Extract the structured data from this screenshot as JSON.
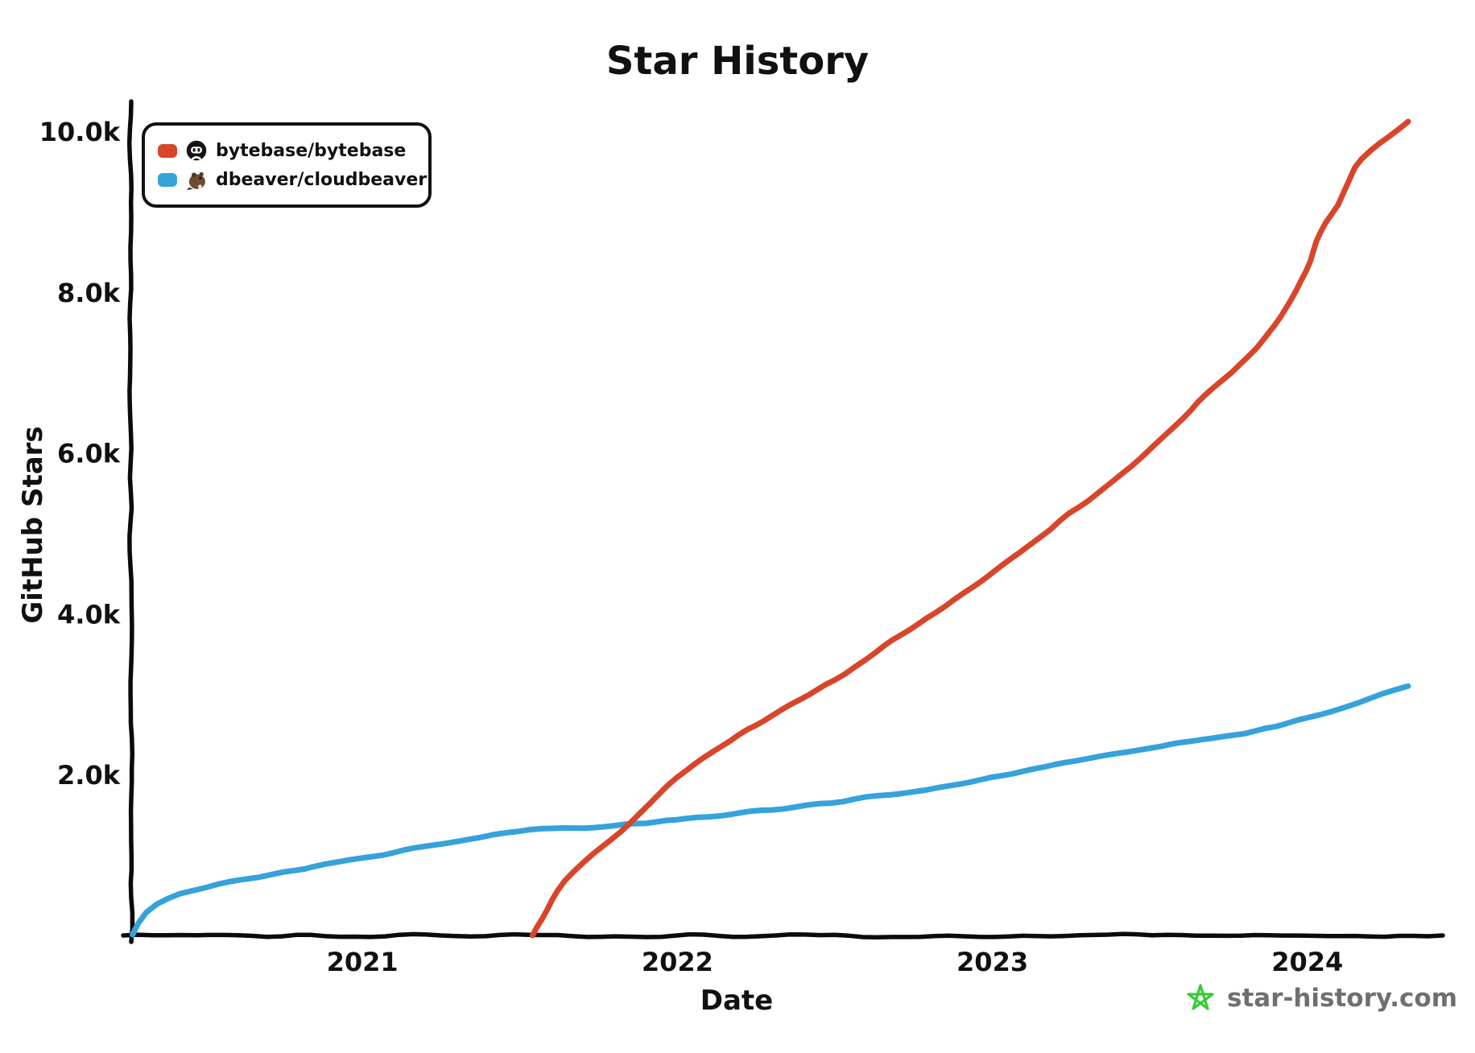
{
  "title": "Star History",
  "watermark": {
    "text": "star-history.com",
    "star_color": "#35cc35",
    "text_color": "#6f6f6f"
  },
  "legend": {
    "items": [
      {
        "label": "bytebase/bytebase",
        "color": "#d9452b",
        "avatar": "bytebase-logo"
      },
      {
        "label": "dbeaver/cloudbeaver",
        "color": "#36a2da",
        "avatar": "beaver-logo"
      }
    ]
  },
  "chart_data": {
    "type": "line",
    "title": "Star History",
    "xlabel": "Date",
    "ylabel": "GitHub Stars",
    "xlim": [
      2020.266,
      2024.43
    ],
    "ylim": [
      0,
      10350
    ],
    "grid": false,
    "legend_position": "top-left",
    "x_ticks": [
      {
        "value": 2021,
        "label": "2021"
      },
      {
        "value": 2022,
        "label": "2022"
      },
      {
        "value": 2023,
        "label": "2023"
      },
      {
        "value": 2024,
        "label": "2024"
      }
    ],
    "y_ticks": [
      {
        "value": 2000,
        "label": "2.0k"
      },
      {
        "value": 4000,
        "label": "4.0k"
      },
      {
        "value": 6000,
        "label": "6.0k"
      },
      {
        "value": 8000,
        "label": "8.0k"
      },
      {
        "value": 10000,
        "label": "10.0k"
      }
    ],
    "series": [
      {
        "name": "bytebase/bytebase",
        "color": "#d9452b",
        "points": [
          [
            2021.54,
            0
          ],
          [
            2021.57,
            220
          ],
          [
            2021.6,
            440
          ],
          [
            2021.64,
            680
          ],
          [
            2021.7,
            900
          ],
          [
            2021.76,
            1090
          ],
          [
            2021.82,
            1280
          ],
          [
            2021.88,
            1530
          ],
          [
            2021.94,
            1760
          ],
          [
            2022.0,
            1980
          ],
          [
            2022.08,
            2200
          ],
          [
            2022.17,
            2430
          ],
          [
            2022.25,
            2620
          ],
          [
            2022.33,
            2800
          ],
          [
            2022.42,
            3000
          ],
          [
            2022.5,
            3180
          ],
          [
            2022.56,
            3330
          ],
          [
            2022.63,
            3520
          ],
          [
            2022.71,
            3740
          ],
          [
            2022.79,
            3950
          ],
          [
            2022.88,
            4180
          ],
          [
            2023.0,
            4500
          ],
          [
            2023.08,
            4760
          ],
          [
            2023.15,
            4950
          ],
          [
            2023.22,
            5160
          ],
          [
            2023.3,
            5390
          ],
          [
            2023.38,
            5640
          ],
          [
            2023.47,
            5930
          ],
          [
            2023.55,
            6230
          ],
          [
            2023.63,
            6530
          ],
          [
            2023.7,
            6800
          ],
          [
            2023.76,
            7000
          ],
          [
            2023.84,
            7310
          ],
          [
            2023.9,
            7600
          ],
          [
            2023.95,
            7900
          ],
          [
            2024.0,
            8250
          ],
          [
            2024.03,
            8650
          ],
          [
            2024.06,
            8850
          ],
          [
            2024.1,
            9080
          ],
          [
            2024.15,
            9550
          ],
          [
            2024.2,
            9750
          ],
          [
            2024.26,
            9930
          ],
          [
            2024.32,
            10120
          ]
        ]
      },
      {
        "name": "dbeaver/cloudbeaver",
        "color": "#36a2da",
        "points": [
          [
            2020.27,
            10
          ],
          [
            2020.29,
            160
          ],
          [
            2020.31,
            300
          ],
          [
            2020.35,
            420
          ],
          [
            2020.42,
            520
          ],
          [
            2020.5,
            600
          ],
          [
            2020.58,
            660
          ],
          [
            2020.67,
            720
          ],
          [
            2020.75,
            790
          ],
          [
            2020.88,
            870
          ],
          [
            2021.0,
            950
          ],
          [
            2021.13,
            1060
          ],
          [
            2021.26,
            1150
          ],
          [
            2021.38,
            1230
          ],
          [
            2021.5,
            1295
          ],
          [
            2021.6,
            1330
          ],
          [
            2021.7,
            1345
          ],
          [
            2021.8,
            1365
          ],
          [
            2021.9,
            1400
          ],
          [
            2022.0,
            1445
          ],
          [
            2022.1,
            1485
          ],
          [
            2022.2,
            1525
          ],
          [
            2022.3,
            1560
          ],
          [
            2022.45,
            1630
          ],
          [
            2022.6,
            1715
          ],
          [
            2022.75,
            1800
          ],
          [
            2022.9,
            1890
          ],
          [
            2023.0,
            1960
          ],
          [
            2023.1,
            2040
          ],
          [
            2023.2,
            2120
          ],
          [
            2023.3,
            2190
          ],
          [
            2023.4,
            2270
          ],
          [
            2023.5,
            2340
          ],
          [
            2023.6,
            2400
          ],
          [
            2023.7,
            2450
          ],
          [
            2023.8,
            2515
          ],
          [
            2023.9,
            2600
          ],
          [
            2024.0,
            2700
          ],
          [
            2024.08,
            2780
          ],
          [
            2024.16,
            2890
          ],
          [
            2024.24,
            3000
          ],
          [
            2024.32,
            3100
          ]
        ]
      }
    ]
  }
}
